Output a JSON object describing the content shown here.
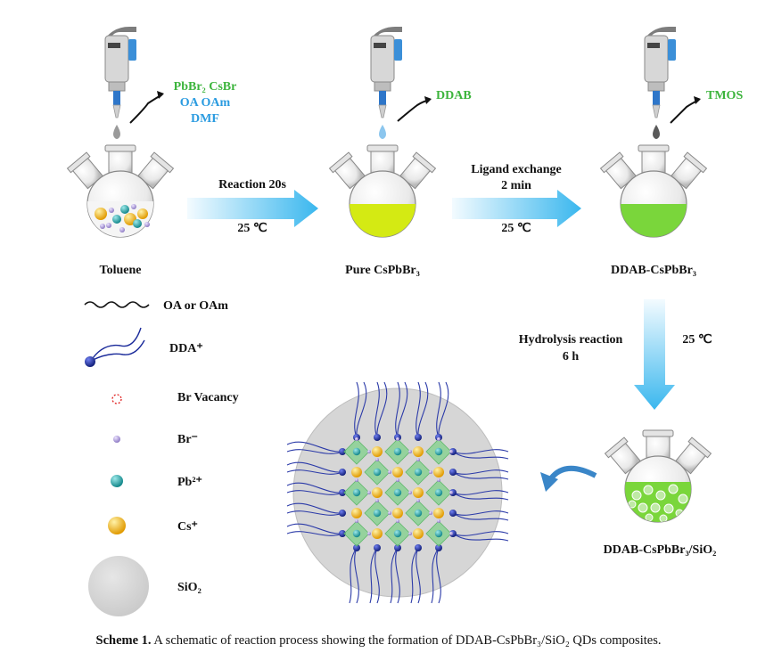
{
  "colors": {
    "green_text": "#3cb43c",
    "blue_text": "#2a9be0",
    "yellow_liquid": "#d4ea13",
    "green_liquid": "#7ad63b",
    "arrow_light": "#e6f6ff",
    "arrow_dark": "#3ab7ee",
    "sio2_gray": "#d6d6d6",
    "pb_teal": "#1fa6a8",
    "cs_gold": "#f2b31a",
    "br_lavender": "#b3a2d8",
    "dda_navy": "#1a2a9a"
  },
  "step1": {
    "reagent_line1": "PbBr₂ CsBr",
    "reagent_line2": "OA OAm",
    "reagent_line3": "DMF",
    "flask_label": "Toluene"
  },
  "arrow1": {
    "top": "Reaction 20s",
    "bottom": "25 ℃"
  },
  "step2": {
    "reagent": "DDAB",
    "flask_label": "Pure CsPbBr₃"
  },
  "arrow2": {
    "top_line1": "Ligand exchange",
    "top_line2": "2 min",
    "bottom": "25 ℃"
  },
  "step3": {
    "reagent": "TMOS",
    "flask_label": "DDAB-CsPbBr₃"
  },
  "arrow3": {
    "left_line1": "Hydrolysis reaction",
    "left_line2": "6 h",
    "right": "25 ℃"
  },
  "step4": {
    "flask_label": "DDAB-CsPbBr₃/SiO₂"
  },
  "legend": [
    {
      "symbol": "wave-line",
      "label": "OA or OAm"
    },
    {
      "symbol": "dda-ligand",
      "label": "DDA⁺"
    },
    {
      "symbol": "br-vacancy",
      "label": "Br Vacancy"
    },
    {
      "symbol": "br-ion",
      "label": "Br⁻"
    },
    {
      "symbol": "pb-ion",
      "label": "Pb²⁺"
    },
    {
      "symbol": "cs-ion",
      "label": "Cs⁺"
    },
    {
      "symbol": "sio2-disc",
      "label": "SiO₂"
    }
  ],
  "caption": {
    "label": "Scheme 1.",
    "text": "A schematic of reaction process showing the formation of DDAB-CsPbBr₃/SiO₂ QDs composites."
  }
}
